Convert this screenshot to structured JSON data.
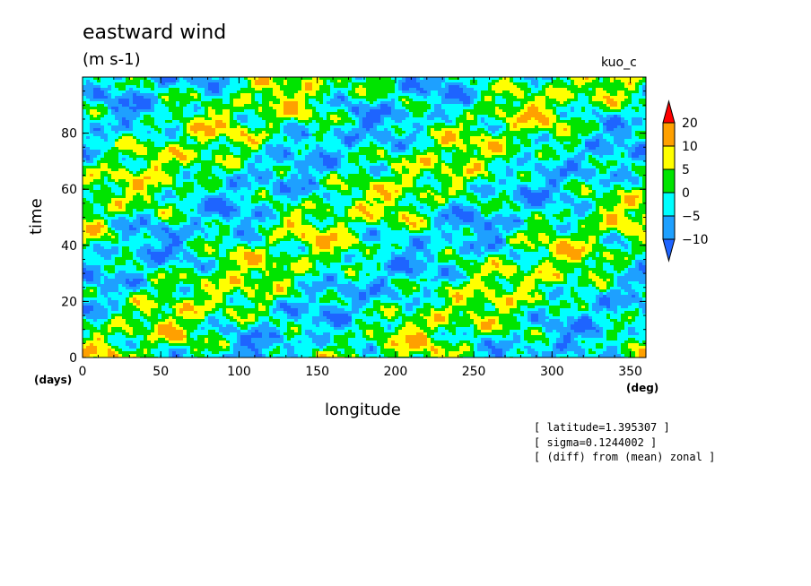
{
  "chart_data": {
    "type": "heatmap",
    "title": "eastward wind",
    "units": "(m s-1)",
    "run_label": "kuo_c",
    "xlabel": "longitude",
    "ylabel": "time",
    "x_unit": "(deg)",
    "y_unit": "(days)",
    "xlim": [
      0,
      360
    ],
    "ylim": [
      0,
      100
    ],
    "x_ticks": [
      0,
      50,
      100,
      150,
      200,
      250,
      300,
      350
    ],
    "y_ticks": [
      0,
      20,
      40,
      60,
      80
    ],
    "colorbar": {
      "levels": [
        -10,
        -5,
        0,
        5,
        10,
        20
      ],
      "colors": [
        "#1e64ff",
        "#1ea0ff",
        "#00ffff",
        "#00e400",
        "#ffff00",
        "#ffa000",
        "#ff0000"
      ],
      "extend": "both"
    },
    "notes": [
      "[ latitude=1.395307 ]",
      "[ sigma=0.1244002 ]",
      "[ (diff) from (mean) zonal ]"
    ]
  }
}
